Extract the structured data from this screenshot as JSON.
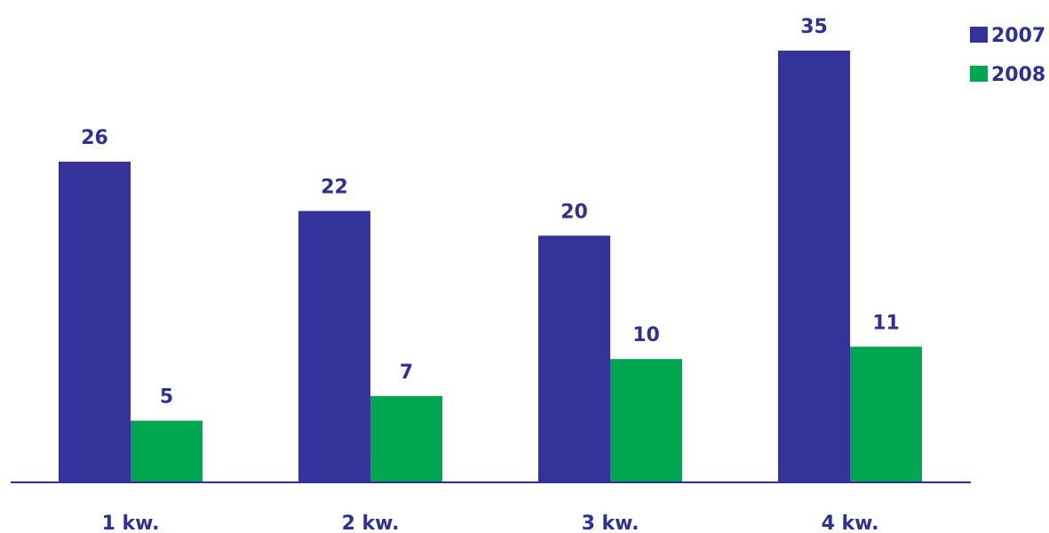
{
  "chart_data": {
    "type": "bar",
    "categories": [
      "1 kw.",
      "2 kw.",
      "3 kw.",
      "4 kw."
    ],
    "series": [
      {
        "name": "2007",
        "values": [
          26,
          22,
          20,
          35
        ],
        "color": "#333399"
      },
      {
        "name": "2008",
        "values": [
          5,
          7,
          10,
          11
        ],
        "color": "#00a650"
      }
    ],
    "title": "",
    "xlabel": "",
    "ylabel": "",
    "ylim": [
      0,
      35
    ],
    "grid": false,
    "legend_position": "top-right",
    "label_color": "#2e3192",
    "axis_color": "#2e3192"
  }
}
